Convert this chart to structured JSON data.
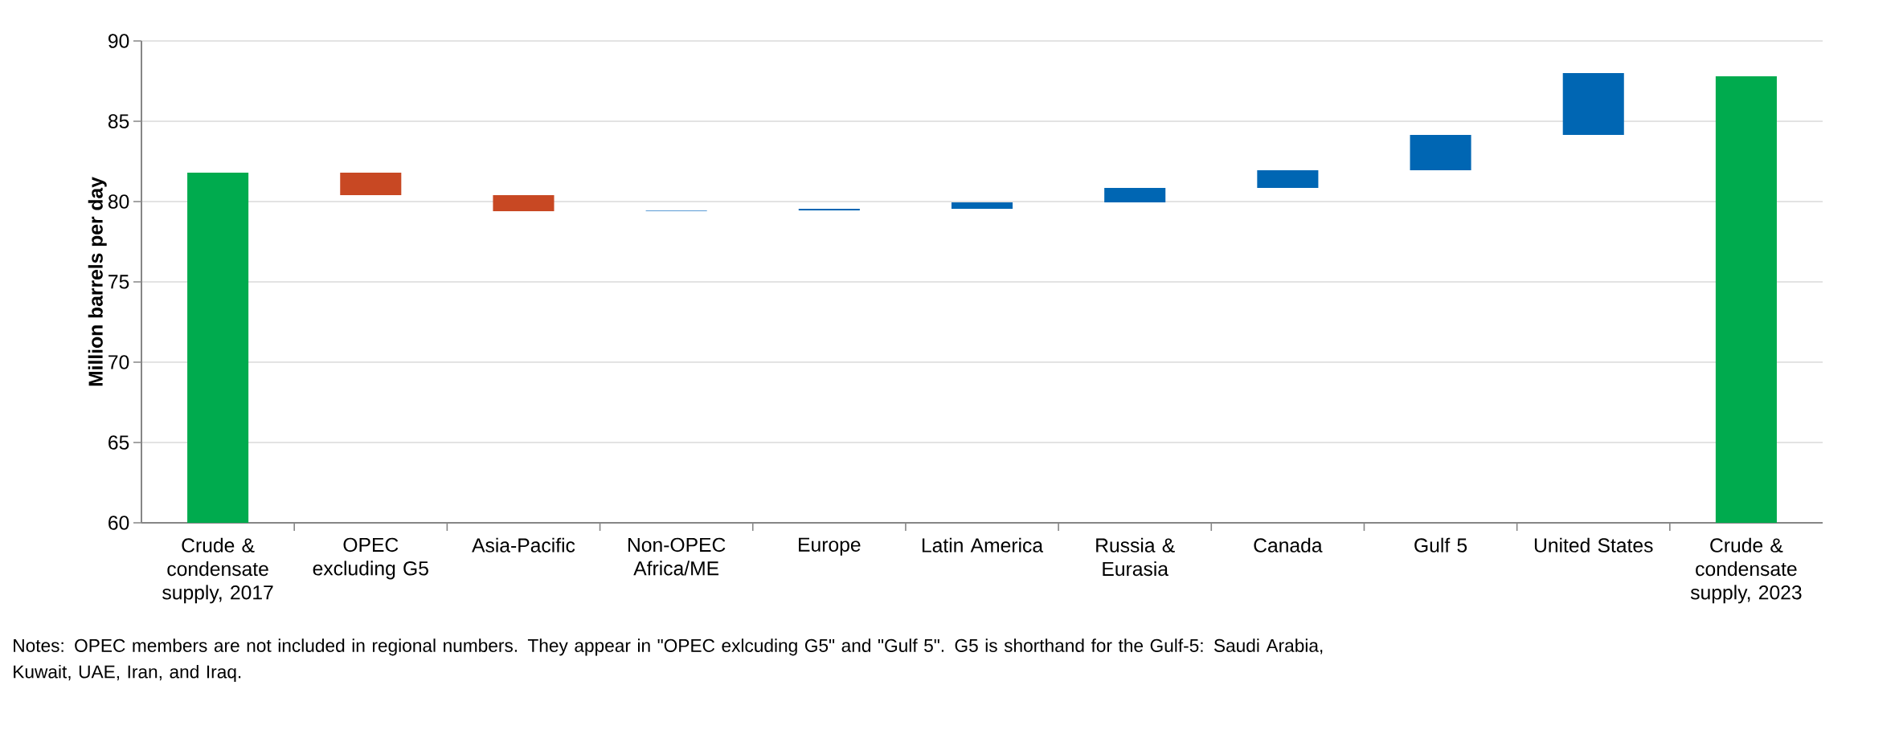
{
  "chart_data": {
    "type": "bar",
    "ylabel": "Million barrels per day",
    "categories": [
      "Crude & condensate supply, 2017",
      "OPEC excluding G5",
      "Asia-Pacific",
      "Non-OPEC Africa/ME",
      "Europe",
      "Latin America",
      "Russia & Eurasia",
      "Canada",
      "Gulf 5",
      "United States",
      "Crude & condensate supply, 2023"
    ],
    "base": [
      60,
      81.8,
      80.4,
      79.4,
      79.45,
      79.55,
      79.95,
      80.85,
      81.95,
      84.15,
      60
    ],
    "values": [
      21.8,
      -1.4,
      -1.0,
      0.05,
      0.1,
      0.4,
      0.9,
      1.1,
      2.2,
      3.85,
      27.8
    ],
    "colors": [
      "#00ab4e",
      "#c84823",
      "#c84823",
      "#5b9bd5",
      "#0066b3",
      "#0066b3",
      "#0066b3",
      "#0066b3",
      "#0066b3",
      "#0066b3",
      "#00ab4e"
    ],
    "ylim": [
      60,
      90
    ],
    "yticks": [
      60,
      65,
      70,
      75,
      80,
      85,
      90
    ],
    "grid": "y",
    "annotations": [
      "Notes: OPEC members are not included in regional numbers. They appear in \"OPEC exlcuding G5\" and \"Gulf 5\". G5 is shorthand for the Gulf-5: Saudi Arabia, Kuwait, UAE, Iran, and Iraq."
    ]
  }
}
